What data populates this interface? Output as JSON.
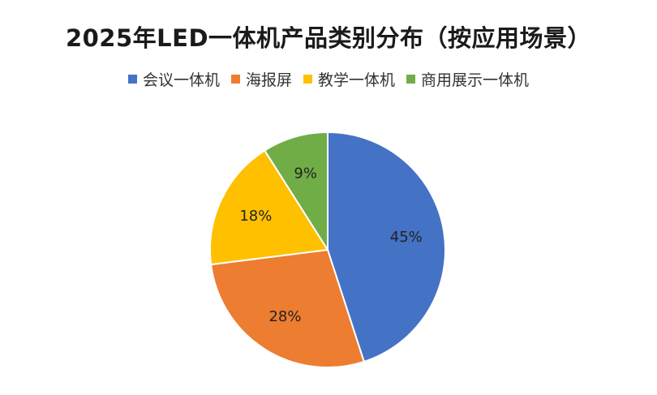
{
  "chart_data": {
    "type": "pie",
    "title": "2025年LED一体机产品类别分布（按应用场景）",
    "legend_position": "top",
    "slices": [
      {
        "name": "会议一体机",
        "value": 45,
        "label": "45%",
        "color": "#4472C4"
      },
      {
        "name": "海报屏",
        "value": 28,
        "label": "28%",
        "color": "#ED7D31"
      },
      {
        "name": "教学一体机",
        "value": 18,
        "label": "18%",
        "color": "#FFC000"
      },
      {
        "name": "商用展示一体机",
        "value": 9,
        "label": "9%",
        "color": "#70AD47"
      }
    ]
  }
}
